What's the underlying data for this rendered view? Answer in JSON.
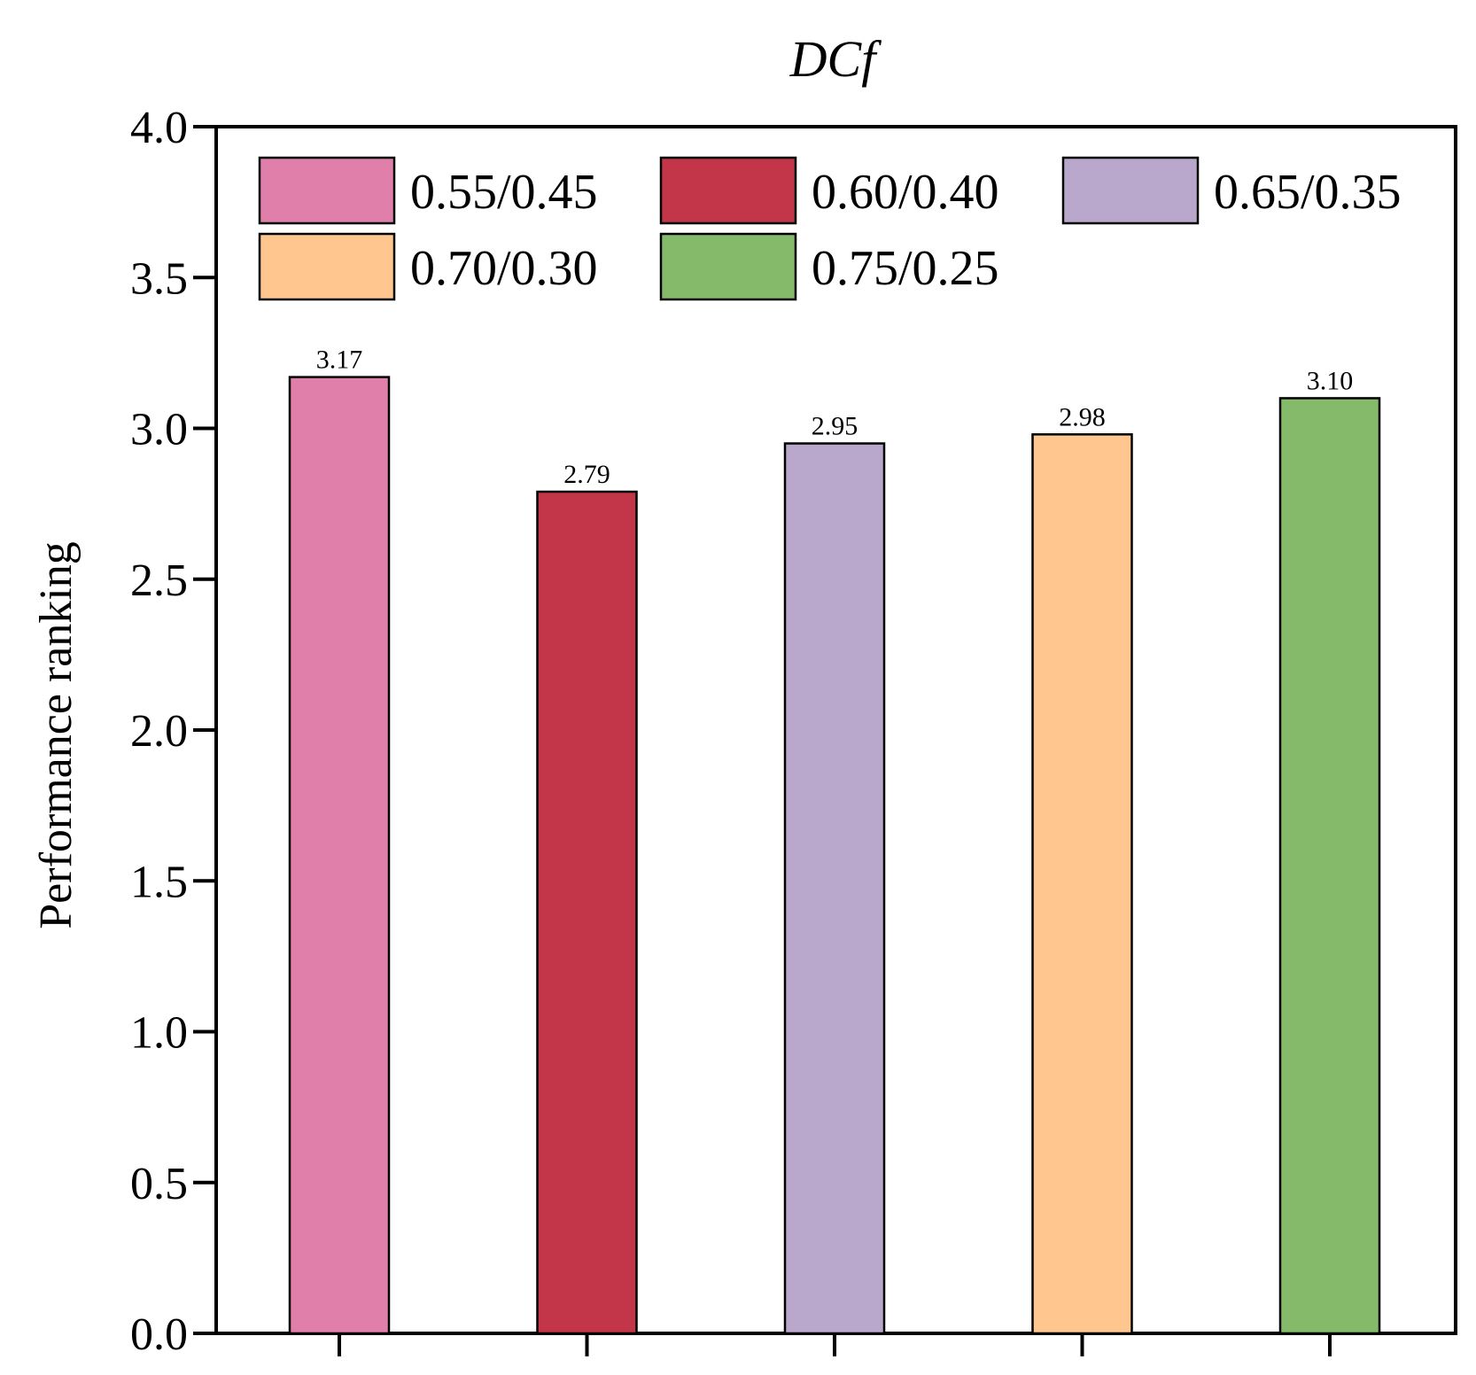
{
  "chart_data": {
    "type": "bar",
    "title": "DCf",
    "xlabel": "",
    "ylabel": "Performance ranking",
    "ylim": [
      0,
      4
    ],
    "yticks": [
      "0.0",
      "0.5",
      "1.0",
      "1.5",
      "2.0",
      "2.5",
      "3.0",
      "3.5",
      "4.0"
    ],
    "grid": false,
    "legend_position": "top",
    "categories": [
      "0.55/0.45",
      "0.60/0.40",
      "0.65/0.35",
      "0.70/0.30",
      "0.75/0.25"
    ],
    "values": [
      3.17,
      2.79,
      2.95,
      2.98,
      3.1
    ],
    "value_labels": [
      "3.17",
      "2.79",
      "2.95",
      "2.98",
      "3.10"
    ],
    "colors": [
      "#E07FAA",
      "#C33649",
      "#BAA7CC",
      "#FFC68F",
      "#85BA6B"
    ]
  }
}
